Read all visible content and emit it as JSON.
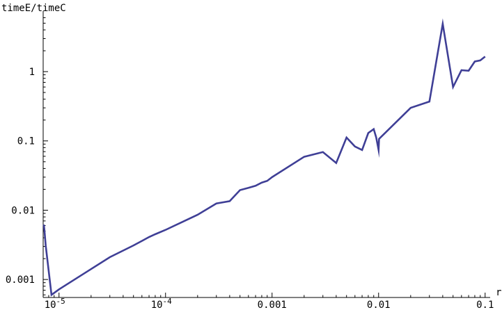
{
  "chart_data": {
    "type": "line",
    "xlabel": "r",
    "ylabel": "timeE/timeC",
    "xscale": "log",
    "yscale": "log",
    "xlim": [
      7.1e-06,
      0.105
    ],
    "ylim": [
      0.00055,
      6.5
    ],
    "line_color": "#3f3f96",
    "grid": false,
    "x_ticks": [
      {
        "value": 1e-05,
        "base": "10",
        "exp": "-5"
      },
      {
        "value": 0.0001,
        "base": "10",
        "exp": "-4"
      },
      {
        "value": 0.001,
        "label": "0.001"
      },
      {
        "value": 0.01,
        "label": "0.01"
      },
      {
        "value": 0.1,
        "label": "0.1"
      }
    ],
    "y_ticks": [
      {
        "value": 0.001,
        "label": "0.001"
      },
      {
        "value": 0.01,
        "label": "0.01"
      },
      {
        "value": 0.1,
        "label": "0.1"
      },
      {
        "value": 1,
        "label": "1"
      }
    ],
    "series": [
      {
        "x": [
          7.2e-06,
          7.3e-06,
          7.5e-06,
          8.5e-06,
          1e-05,
          3e-05,
          5e-05,
          6e-05,
          7e-05,
          8e-05,
          0.0001,
          0.0002,
          0.0003,
          0.0004,
          0.0005,
          0.0006,
          0.0007,
          0.0008,
          0.0009,
          0.001,
          0.002,
          0.003,
          0.004,
          0.005,
          0.006,
          0.007,
          0.008,
          0.009,
          0.0095,
          0.01,
          0.0101,
          0.02,
          0.03,
          0.04,
          0.05,
          0.06,
          0.07,
          0.08,
          0.09,
          0.1
        ],
        "y": [
          0.0062,
          0.0051,
          0.0031,
          0.0006,
          0.00072,
          0.0021,
          0.0031,
          0.0036,
          0.0041,
          0.0045,
          0.0052,
          0.0086,
          0.0125,
          0.0135,
          0.0195,
          0.021,
          0.0225,
          0.025,
          0.0265,
          0.03,
          0.059,
          0.069,
          0.048,
          0.112,
          0.083,
          0.074,
          0.13,
          0.148,
          0.112,
          0.074,
          0.107,
          0.3,
          0.37,
          4.9,
          0.6,
          1.05,
          1.03,
          1.4,
          1.45,
          1.65
        ]
      }
    ]
  }
}
